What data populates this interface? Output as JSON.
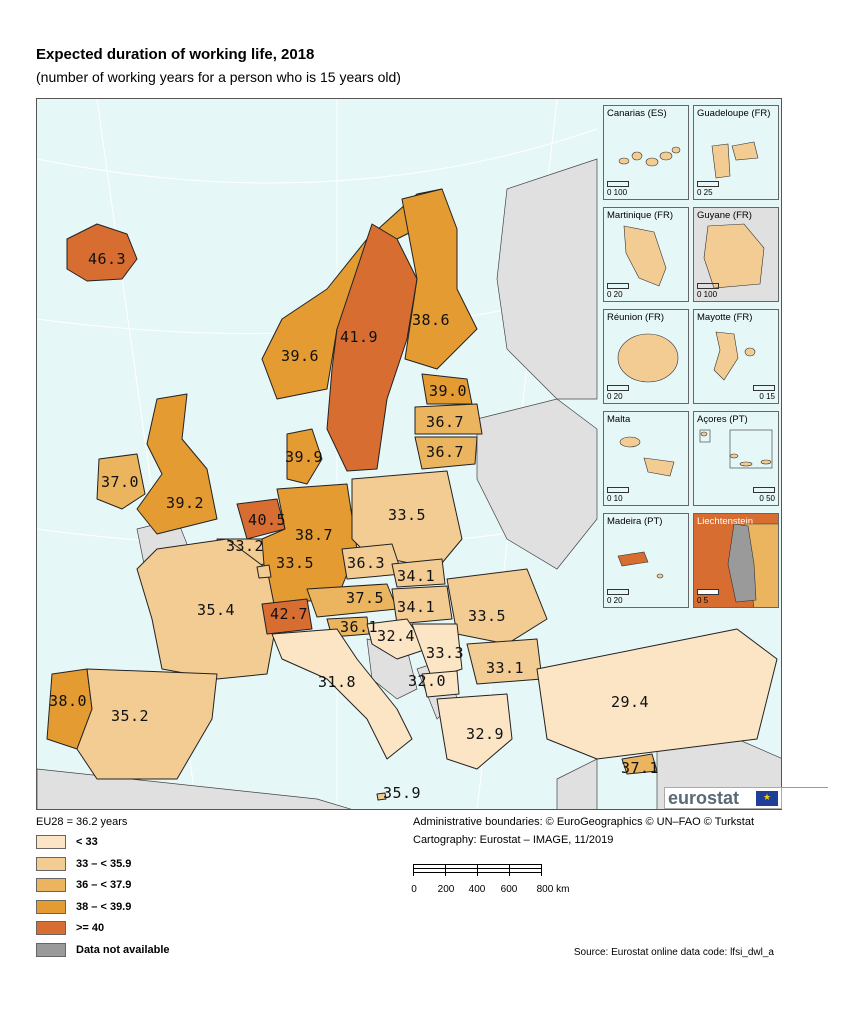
{
  "title": "Expected duration of working life, 2018",
  "subtitle": "(number of working years for a person who is 15 years old)",
  "eu_average": "EU28 = 36.2 years",
  "legend": [
    {
      "label": "< 33",
      "color": "#fbe5c4"
    },
    {
      "label": "33 – < 35.9",
      "color": "#f2cc93"
    },
    {
      "label": "36 – < 37.9",
      "color": "#ebb45e"
    },
    {
      "label": "38 – < 39.9",
      "color": "#e39b32"
    },
    {
      "label": ">= 40",
      "color": "#d86d32"
    },
    {
      "label": "Data not available",
      "color": "#9a9a9a"
    }
  ],
  "credits": {
    "line1": "Administrative boundaries: © EuroGeographics © UN–FAO © Turkstat",
    "line2": "Cartography: Eurostat – IMAGE, 11/2019"
  },
  "scalebar": {
    "ticks": [
      "0",
      "200",
      "400",
      "600",
      "800 km"
    ]
  },
  "source": "Source: Eurostat online data code: lfsi_dwl_a",
  "logo": {
    "text": "eurostat",
    "flag_stars": "★"
  },
  "colors": {
    "sea": "#e6f7f7",
    "non_eu": "#e0e0e0",
    "border": "#222222"
  },
  "insets": [
    {
      "name": "Canarias (ES)",
      "scale": "0    100"
    },
    {
      "name": "Guadeloupe (FR)",
      "scale": "0    25"
    },
    {
      "name": "Martinique (FR)",
      "scale": "0    20"
    },
    {
      "name": "Guyane (FR)",
      "scale": "0   100"
    },
    {
      "name": "Réunion (FR)",
      "scale": "0    20"
    },
    {
      "name": "Mayotte (FR)",
      "scale": "0    15"
    },
    {
      "name": "Malta",
      "scale": "0    10"
    },
    {
      "name": "Açores (PT)",
      "scale": "0    50"
    },
    {
      "name": "Madeira (PT)",
      "scale": "0    20"
    },
    {
      "name": "Liechtenstein",
      "scale": "0   5"
    }
  ],
  "values": {
    "iceland": "46.3",
    "sweden": "41.9",
    "finland": "38.6",
    "norway": "39.6",
    "estonia": "39.0",
    "latvia": "36.7",
    "lithuania": "36.7",
    "denmark": "39.9",
    "ireland": "37.0",
    "uk": "39.2",
    "netherlands": "40.5",
    "belgium": "33.2",
    "germany": "38.7",
    "poland": "33.5",
    "luxembourg": "33.5",
    "czechia": "36.3",
    "slovakia": "34.1",
    "austria": "37.5",
    "hungary": "34.1",
    "romania": "33.5",
    "france": "35.4",
    "switzerland": "42.7",
    "slovenia": "36.1",
    "croatia": "32.4",
    "serbia": "33.3",
    "bulgaria": "33.1",
    "italy": "31.8",
    "north_macedonia": "32.0",
    "portugal": "38.0",
    "spain": "35.2",
    "greece": "32.9",
    "turkey": "29.4",
    "cyprus": "37.1",
    "malta": "35.9"
  }
}
